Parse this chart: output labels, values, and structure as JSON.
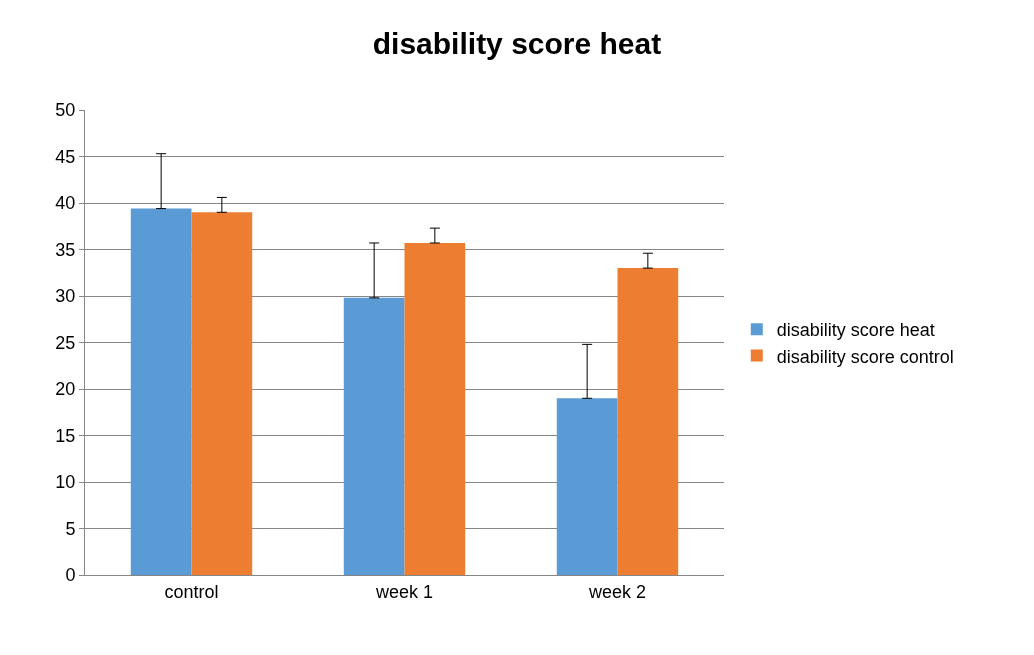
{
  "chart_data": {
    "type": "bar",
    "title": "disability score heat",
    "categories": [
      "control",
      "week 1",
      "week 2"
    ],
    "series": [
      {
        "name": "disability score heat",
        "color": "#5b9bd5",
        "values": [
          39.4,
          29.8,
          19.0
        ],
        "errors": [
          [
            39.4,
            45.3
          ],
          [
            29.8,
            35.7
          ],
          [
            19.0,
            24.8
          ]
        ]
      },
      {
        "name": "disability score control",
        "color": "#ed7d31",
        "values": [
          39.0,
          35.7,
          33.0
        ],
        "errors": [
          [
            39.0,
            40.6
          ],
          [
            35.7,
            37.3
          ],
          [
            33.0,
            34.6
          ]
        ]
      }
    ],
    "ylim": [
      0,
      50
    ],
    "yticks": [
      0,
      5,
      10,
      15,
      20,
      25,
      30,
      35,
      40,
      45,
      50
    ],
    "grid": "y",
    "legend": "right"
  }
}
